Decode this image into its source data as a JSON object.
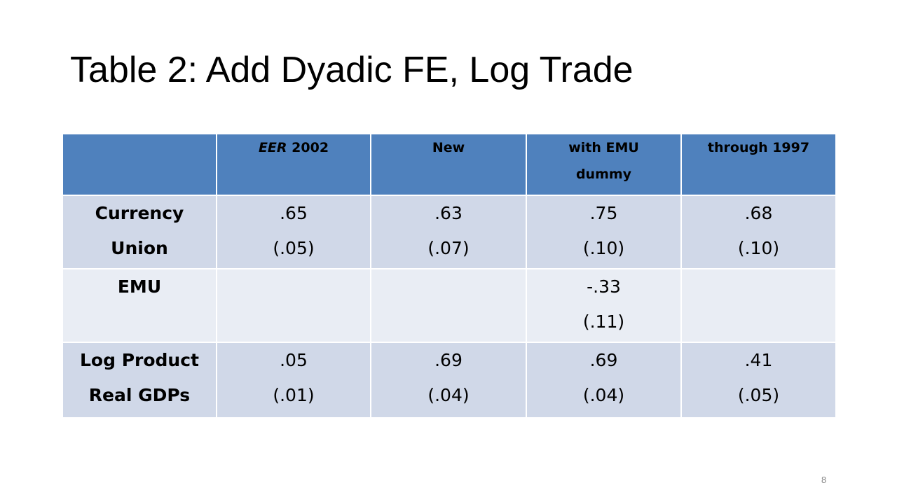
{
  "slide": {
    "title": "Table 2: Add Dyadic FE, Log Trade",
    "page_number": "8"
  },
  "table": {
    "columns": [
      {
        "lines": [
          ""
        ]
      },
      {
        "lines": [
          "EER 2002"
        ]
      },
      {
        "lines": [
          "New"
        ]
      },
      {
        "lines": [
          "with EMU",
          "dummy"
        ]
      },
      {
        "lines": [
          "through 1997"
        ]
      }
    ],
    "rows": [
      {
        "label": [
          "Currency",
          "Union"
        ],
        "cells": [
          {
            "lines": [
              ".65",
              "(.05)"
            ],
            "highlight": false
          },
          {
            "lines": [
              ".63",
              "(.07)"
            ],
            "highlight": true
          },
          {
            "lines": [
              ".75",
              "(.10)"
            ],
            "highlight": true
          },
          {
            "lines": [
              ".68",
              "(.10)"
            ],
            "highlight": false
          }
        ]
      },
      {
        "label": [
          "EMU"
        ],
        "cells": [
          {
            "lines": [],
            "highlight": false
          },
          {
            "lines": [],
            "highlight": false
          },
          {
            "lines": [
              "-.33",
              "(.11)"
            ],
            "highlight": true
          },
          {
            "lines": [],
            "highlight": false
          }
        ]
      },
      {
        "label": [
          "Log Product",
          "Real GDPs"
        ],
        "cells": [
          {
            "lines": [
              ".05",
              "(.01)"
            ],
            "highlight": false
          },
          {
            "lines": [
              ".69",
              "(.04)"
            ],
            "highlight": false
          },
          {
            "lines": [
              ".69",
              "(.04)"
            ],
            "highlight": false
          },
          {
            "lines": [
              ".41",
              "(.05)"
            ],
            "highlight": false
          }
        ]
      }
    ],
    "colors": {
      "header_bg": "#4f81bd",
      "row_odd_bg": "#d0d8e8",
      "row_even_bg": "#e9edf4",
      "highlight_text": "#e8141b"
    }
  }
}
